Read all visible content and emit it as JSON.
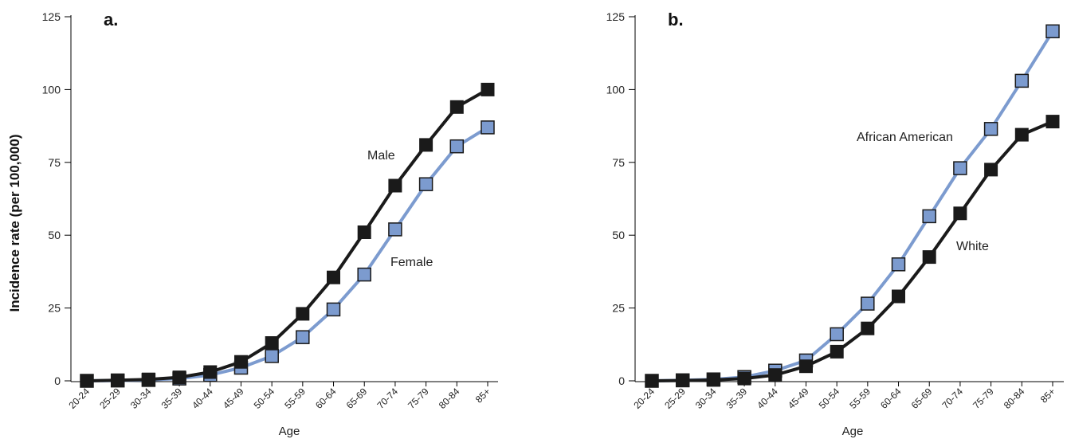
{
  "colors": {
    "axis": "#000000",
    "dark_series": "#1a1a1a",
    "light_series": "#7c9bcf",
    "light_marker_stroke": "#1a1a1a"
  },
  "shared": {
    "ylabel": "Incidence rate (per 100,000)"
  },
  "chart_data": [
    {
      "panel": "a.",
      "type": "line",
      "xlabel": "Age",
      "categories": [
        "20-24",
        "25-29",
        "30-34",
        "35-39",
        "40-44",
        "45-49",
        "50-54",
        "55-59",
        "60-64",
        "65-69",
        "70-74",
        "75-79",
        "80-84",
        "85+"
      ],
      "yticks": [
        "0",
        "25",
        "50",
        "75",
        "100",
        "125"
      ],
      "ylim": [
        0,
        125
      ],
      "series": [
        {
          "name": "Male",
          "style": "dark",
          "values": [
            0,
            0.2,
            0.5,
            1.2,
            3,
            6.5,
            13,
            23,
            35.5,
            51,
            67,
            81,
            94,
            100
          ]
        },
        {
          "name": "Female",
          "style": "light",
          "values": [
            0,
            0.1,
            0.3,
            0.8,
            2,
            4.5,
            8.5,
            15,
            24.5,
            36.5,
            52,
            67.5,
            80.5,
            87
          ]
        }
      ]
    },
    {
      "panel": "b.",
      "type": "line",
      "xlabel": "Age",
      "categories": [
        "20-24",
        "25-29",
        "30-34",
        "35-39",
        "40-44",
        "45-49",
        "50-54",
        "55-59",
        "60-64",
        "65-69",
        "70-74",
        "75-79",
        "80-84",
        "85+"
      ],
      "yticks": [
        "0",
        "25",
        "50",
        "75",
        "100",
        "125"
      ],
      "ylim": [
        0,
        125
      ],
      "series": [
        {
          "name": "African American",
          "style": "light",
          "values": [
            0,
            0.2,
            0.5,
            1.3,
            3.5,
            7,
            16,
            26.5,
            40,
            56.5,
            73,
            86.5,
            103,
            120
          ]
        },
        {
          "name": "White",
          "style": "dark",
          "values": [
            0,
            0.1,
            0.3,
            0.8,
            2,
            5,
            10,
            18,
            29,
            42.5,
            57.5,
            72.5,
            84.5,
            89
          ]
        }
      ]
    }
  ]
}
